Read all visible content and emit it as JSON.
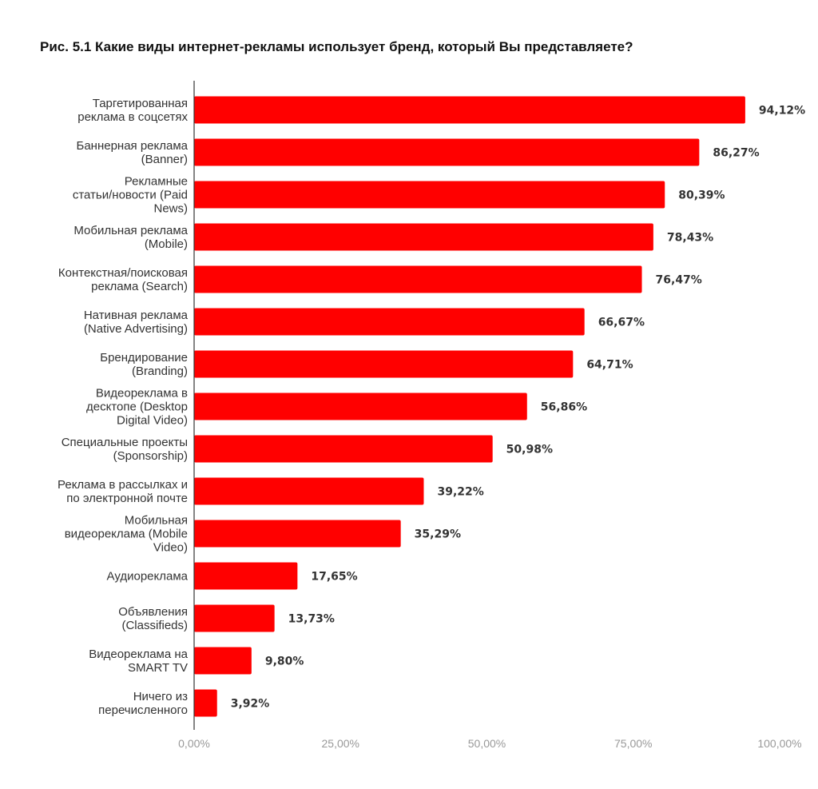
{
  "chart_data": {
    "type": "bar",
    "orientation": "horizontal",
    "title": "Рис. 5.1 Какие виды интернет-рекламы использует бренд, который Вы представляете?",
    "categories": [
      [
        "Таргетированная",
        "реклама в соцсетях"
      ],
      [
        "Баннерная реклама",
        "(Banner)"
      ],
      [
        "Рекламные",
        "статьи/новости (Paid",
        "News)"
      ],
      [
        "Мобильная реклама",
        "(Mobile)"
      ],
      [
        "Контекстная/поисковая",
        "реклама (Search)"
      ],
      [
        "Нативная реклама",
        "(Native Advertising)"
      ],
      [
        "Брендирование",
        "(Branding)"
      ],
      [
        "Видеореклама в",
        "десктопе (Desktop",
        "Digital Video)"
      ],
      [
        "Специальные проекты",
        "(Sponsorship)"
      ],
      [
        "Реклама в рассылках и",
        "по электронной почте"
      ],
      [
        "Мобильная",
        "видеореклама (Mobile",
        "Video)"
      ],
      [
        "Аудиореклама"
      ],
      [
        "Объявления",
        "(Classifieds)"
      ],
      [
        "Видеореклама на",
        "SMART TV"
      ],
      [
        "Ничего из",
        "перечисленного"
      ]
    ],
    "values": [
      94.12,
      86.27,
      80.39,
      78.43,
      76.47,
      66.67,
      64.71,
      56.86,
      50.98,
      39.22,
      35.29,
      17.65,
      13.73,
      9.8,
      3.92
    ],
    "value_labels": [
      "94,12%",
      "86,27%",
      "80,39%",
      "78,43%",
      "76,47%",
      "66,67%",
      "64,71%",
      "56,86%",
      "50,98%",
      "39,22%",
      "35,29%",
      "17,65%",
      "13,73%",
      "9,80%",
      "3,92%"
    ],
    "xlim": [
      0,
      100
    ],
    "xticks": [
      "0,00%",
      "25,00%",
      "50,00%",
      "75,00%",
      "100,00%"
    ],
    "xlabel": "",
    "ylabel": "",
    "grid": false,
    "legend": "none",
    "bar_color": "#ff0000"
  }
}
